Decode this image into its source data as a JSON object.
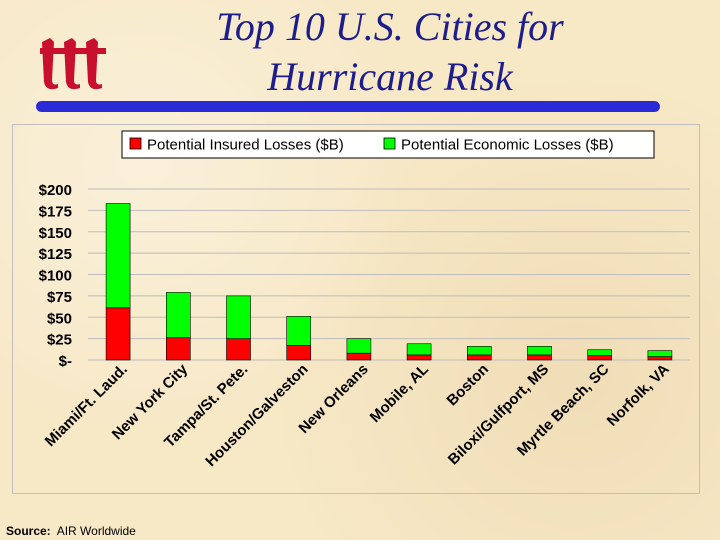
{
  "title": "Top 10 U.S. Cities for Hurricane Risk",
  "logo_text": "iii",
  "source": {
    "label": "Source:",
    "value": "AIR Worldwide"
  },
  "colors": {
    "insured": "#ff0000",
    "economic": "#00ff00",
    "title": "#1d1d8c",
    "bar": "#2a2ad6"
  },
  "chart_data": {
    "type": "bar",
    "stacked": true,
    "title": "",
    "xlabel": "",
    "ylabel": "",
    "ylim": [
      0,
      200
    ],
    "yticks": [
      0,
      25,
      50,
      75,
      100,
      125,
      150,
      175,
      200
    ],
    "ytick_labels": [
      "$-",
      "$25",
      "$50",
      "$75",
      "$100",
      "$125",
      "$150",
      "$175",
      "$200"
    ],
    "grid": true,
    "legend": "top",
    "categories": [
      "Miami/Ft. Laud.",
      "New York City",
      "Tampa/St. Pete.",
      "Houston/Galveston",
      "New Orleans",
      "Mobile, AL",
      "Boston",
      "Biloxi/Gulfport, MS",
      "Myrtle Beach, SC",
      "Norfolk, VA"
    ],
    "series": [
      {
        "name": "Potential Insured Losses ($B)",
        "color": "#ff0000",
        "values": [
          61,
          26,
          25,
          17,
          8,
          6,
          6,
          6,
          5,
          4
        ]
      },
      {
        "name": "Potential Economic Losses ($B)",
        "color": "#00ff00",
        "values": [
          122,
          53,
          50,
          34,
          17,
          13,
          10,
          10,
          7,
          7
        ]
      }
    ]
  }
}
